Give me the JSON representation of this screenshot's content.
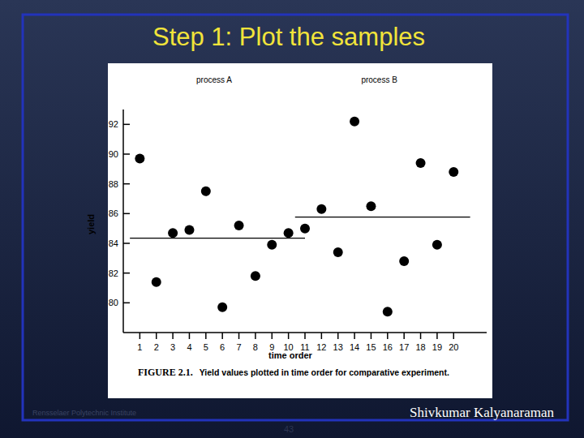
{
  "slide": {
    "title": "Step 1: Plot the samples",
    "footer_left": "Rensselaer Polytechnic Institute",
    "footer_right": "Shivkumar Kalyanaraman",
    "page_number": "43"
  },
  "chart_data": {
    "type": "scatter",
    "caption_label": "FIGURE 2.1.",
    "caption": "Yield values plotted in time order for comparative experiment.",
    "x_label": "time order",
    "y_label": "yield",
    "series": [
      {
        "name": "process A",
        "color": "#000000",
        "marker": "circle",
        "x": [
          1,
          2,
          3,
          4,
          5,
          6,
          7,
          8,
          9,
          10
        ],
        "values": [
          89.7,
          81.4,
          84.7,
          84.9,
          87.5,
          79.7,
          85.2,
          81.8,
          83.9,
          84.7
        ],
        "mean": 84.35
      },
      {
        "name": "process B",
        "color": "#000000",
        "marker": "circle",
        "x": [
          11,
          12,
          13,
          14,
          15,
          16,
          17,
          18,
          19,
          20
        ],
        "values": [
          85.0,
          86.3,
          83.4,
          92.2,
          86.5,
          79.4,
          82.8,
          89.4,
          83.9,
          88.8
        ],
        "mean": 85.77
      }
    ],
    "xlim": [
      0,
      22
    ],
    "ylim": [
      78,
      93
    ],
    "xticks": [
      1,
      2,
      3,
      4,
      5,
      6,
      7,
      8,
      9,
      10,
      11,
      12,
      13,
      14,
      15,
      16,
      17,
      18,
      19,
      20
    ],
    "yticks": [
      80,
      82,
      84,
      86,
      88,
      90,
      92
    ],
    "grid": false
  }
}
